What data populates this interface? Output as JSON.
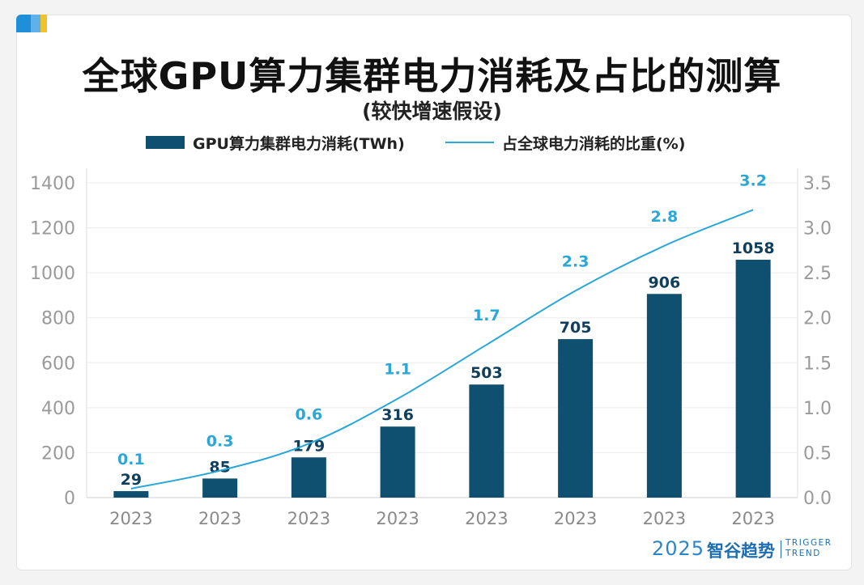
{
  "header": {
    "title": "全球GPU算力集群电力消耗及占比的测算",
    "subtitle": "(较快增速假设)"
  },
  "legend": {
    "bar_label": "GPU算力集群电力消耗(TWh)",
    "line_label": "占全球电力消耗的比重(%)"
  },
  "watermark": {
    "year": "2025",
    "brand": "智谷趋势",
    "en_line1": "TRIGGER",
    "en_line2": "TREND"
  },
  "colors": {
    "bar": "#0f4f6f",
    "line": "#2aa7d6",
    "accent": "#1f8fd8"
  },
  "chart_data": {
    "type": "bar",
    "title": "全球GPU算力集群电力消耗及占比的测算",
    "categories": [
      "2023",
      "2023",
      "2023",
      "2023",
      "2023",
      "2023",
      "2023",
      "2023"
    ],
    "series": [
      {
        "name": "GPU算力集群电力消耗(TWh)",
        "type": "bar",
        "axis": "left",
        "values": [
          29,
          85,
          179,
          316,
          503,
          705,
          906,
          1058
        ],
        "labels": [
          "29",
          "85",
          "179",
          "316",
          "503",
          "705",
          "906",
          "1058"
        ]
      },
      {
        "name": "占全球电力消耗的比重(%)",
        "type": "line",
        "axis": "right",
        "values": [
          0.1,
          0.3,
          0.6,
          1.1,
          1.7,
          2.3,
          2.8,
          3.2
        ],
        "labels": [
          "0.1",
          "0.3",
          "0.6",
          "1.1",
          "1.7",
          "2.3",
          "2.8",
          "3.2"
        ]
      }
    ],
    "y_left": {
      "range": [
        0,
        1400
      ],
      "ticks": [
        "0",
        "200",
        "400",
        "600",
        "800",
        "1000",
        "1200",
        "1400"
      ]
    },
    "y_right": {
      "range": [
        0,
        3.5
      ],
      "ticks": [
        "0.0",
        "0.5",
        "1.0",
        "1.5",
        "2.0",
        "2.5",
        "3.0",
        "3.5"
      ]
    },
    "grid": true,
    "legend_position": "top"
  }
}
